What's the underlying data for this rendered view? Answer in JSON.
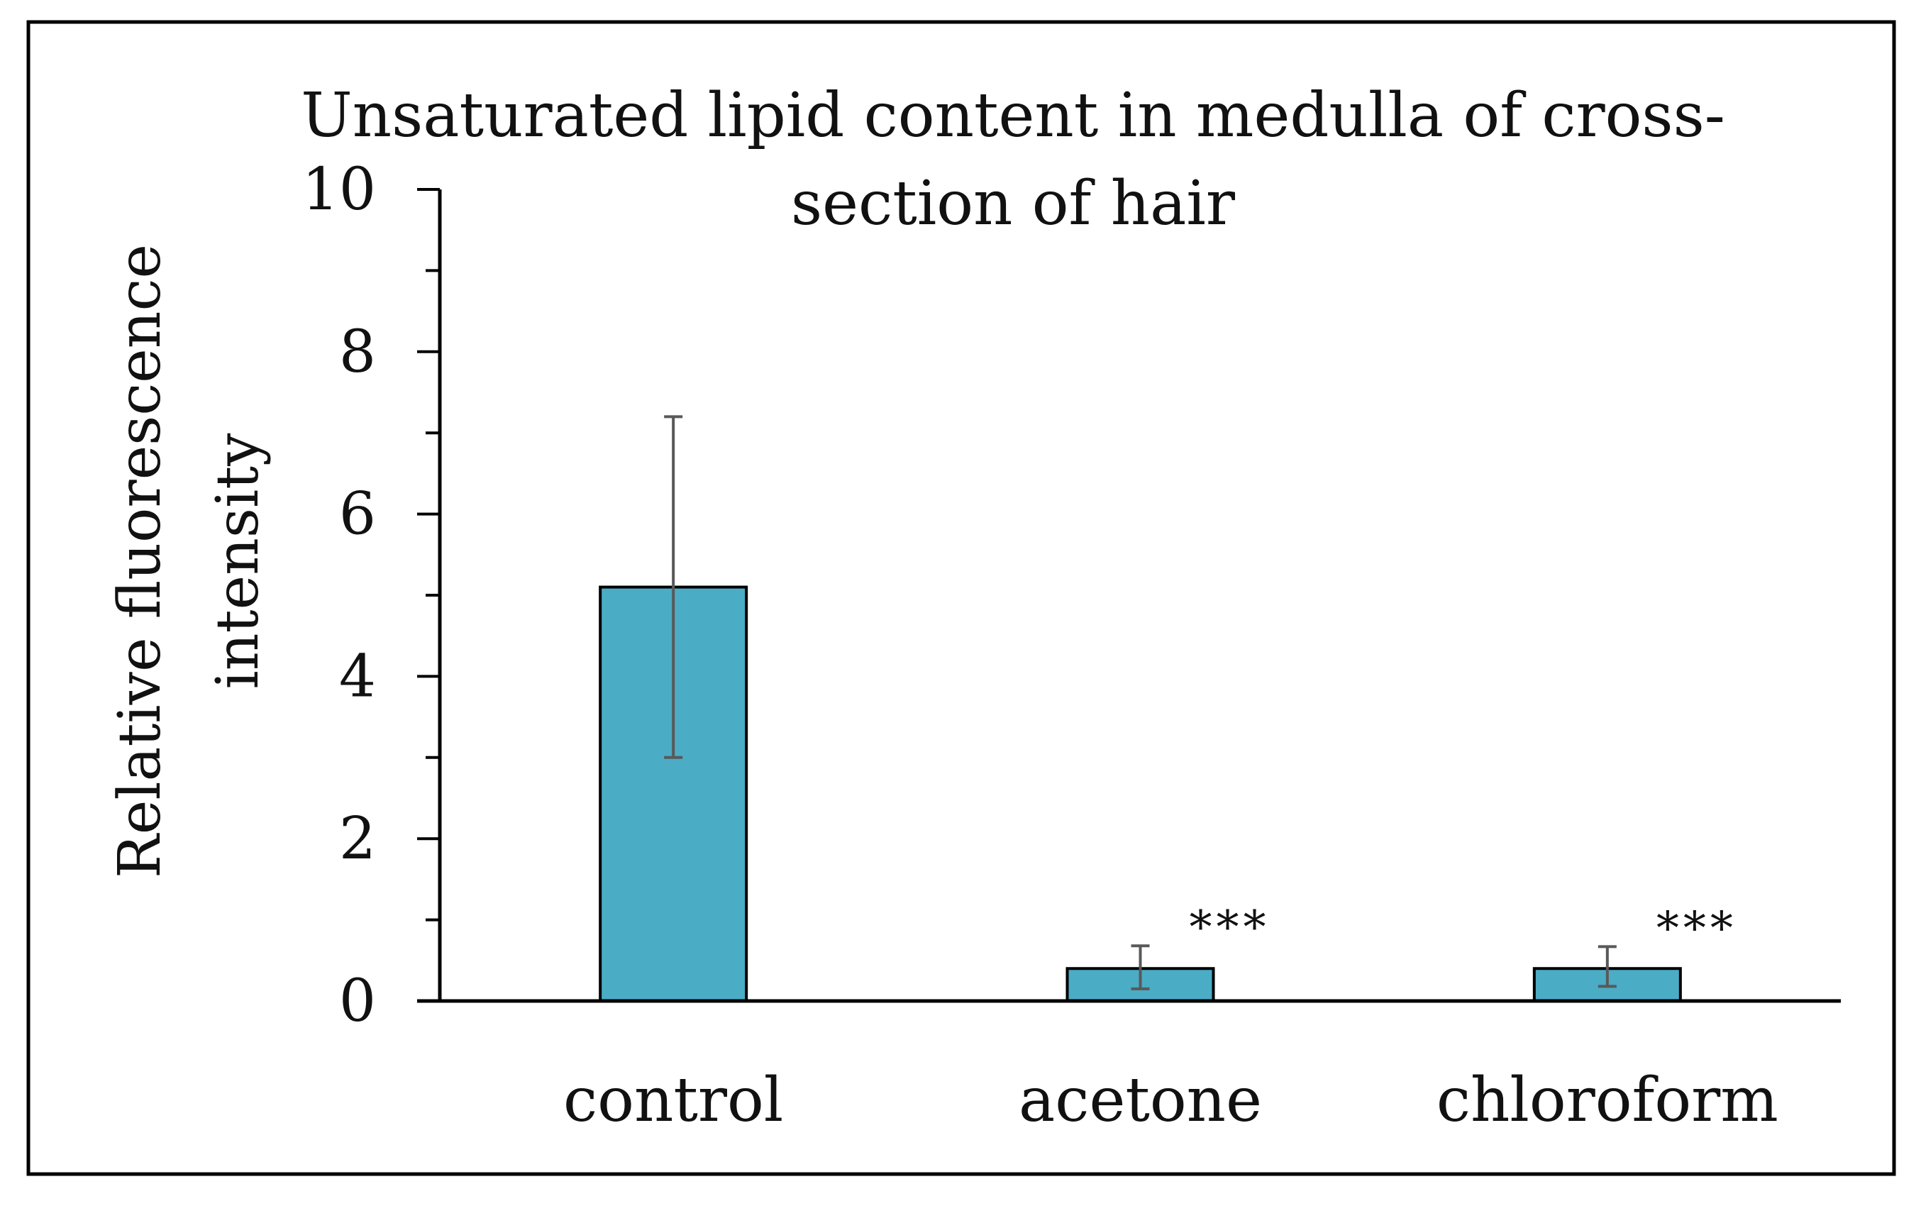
{
  "chart_data": {
    "type": "bar",
    "title": "Unsaturated lipid  content in medulla of cross-section of hair",
    "title_lines": [
      "Unsaturated lipid  content in medulla of cross-",
      "section of hair"
    ],
    "ylabel_lines": [
      "Relative fluorescence",
      "intensity"
    ],
    "xlabel": "",
    "categories": [
      "control",
      "acetone",
      "chloroform"
    ],
    "values": [
      5.1,
      0.4,
      0.4
    ],
    "error_low": [
      3.0,
      0.15,
      0.18
    ],
    "error_high": [
      7.2,
      0.68,
      0.67
    ],
    "significance": [
      "",
      "***",
      "***"
    ],
    "ylim": [
      0,
      10
    ],
    "yticks": [
      "0",
      "2",
      "4",
      "6",
      "8",
      "10"
    ],
    "ytick_values": [
      0,
      2,
      4,
      6,
      8,
      10
    ],
    "grid": false,
    "legend": "none",
    "bar_color": "#4bacc6",
    "bar_edge_color": "#000000",
    "error_color": "#595959"
  }
}
